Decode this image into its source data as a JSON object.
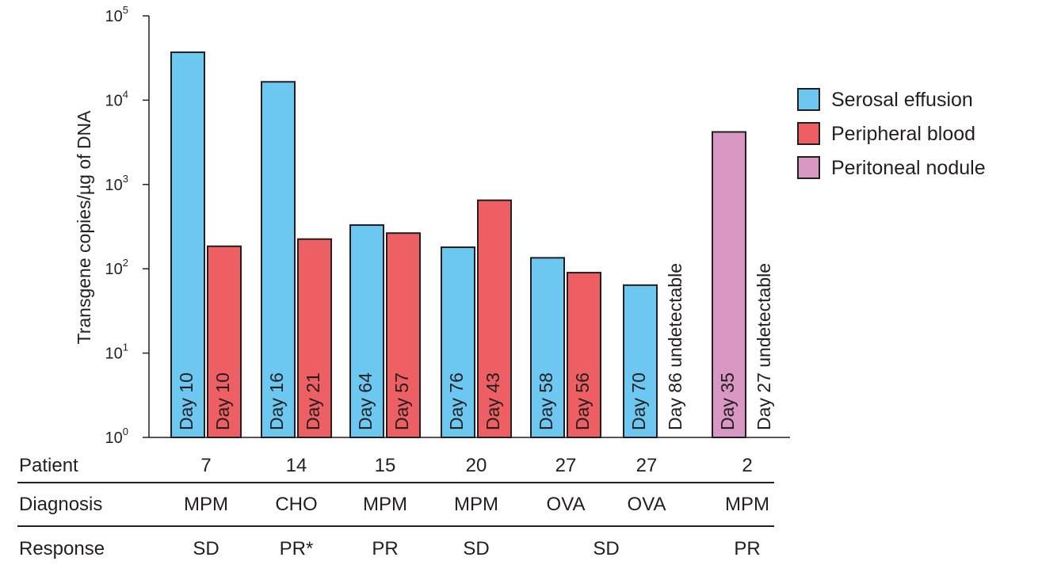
{
  "chart_data": {
    "type": "bar",
    "yscale": "log",
    "ylim": [
      1,
      100000
    ],
    "ylabel": "Transgene copies/µg of DNA",
    "ytick_base": "10",
    "ytick_exponents": [
      "0",
      "1",
      "2",
      "3",
      "4",
      "5"
    ],
    "legend": {
      "placement": "right",
      "entries": [
        {
          "label": "Serosal effusion",
          "color": "#6cc8f0"
        },
        {
          "label": "Peripheral blood",
          "color": "#ee5f63"
        },
        {
          "label": "Peritoneal nodule",
          "color": "#d896c2"
        }
      ]
    },
    "groups": [
      {
        "patient": "7",
        "diagnosis": "MPM",
        "bars": [
          {
            "series": "Serosal effusion",
            "value": 37000,
            "label": "Day 10"
          },
          {
            "series": "Peripheral blood",
            "value": 185,
            "label": "Day 10"
          }
        ]
      },
      {
        "patient": "14",
        "diagnosis": "CHO",
        "bars": [
          {
            "series": "Serosal effusion",
            "value": 16500,
            "label": "Day 16"
          },
          {
            "series": "Peripheral blood",
            "value": 225,
            "label": "Day 21"
          }
        ]
      },
      {
        "patient": "15",
        "diagnosis": "MPM",
        "bars": [
          {
            "series": "Serosal effusion",
            "value": 330,
            "label": "Day 64"
          },
          {
            "series": "Peripheral blood",
            "value": 265,
            "label": "Day 57"
          }
        ]
      },
      {
        "patient": "20",
        "diagnosis": "MPM",
        "bars": [
          {
            "series": "Serosal effusion",
            "value": 180,
            "label": "Day 76"
          },
          {
            "series": "Peripheral blood",
            "value": 650,
            "label": "Day 43"
          }
        ]
      },
      {
        "patient": "27",
        "diagnosis": "OVA",
        "bars": [
          {
            "series": "Serosal effusion",
            "value": 135,
            "label": "Day 58"
          },
          {
            "series": "Peripheral blood",
            "value": 90,
            "label": "Day 56"
          }
        ]
      },
      {
        "patient": "27",
        "diagnosis": "OVA",
        "bars": [
          {
            "series": "Serosal effusion",
            "value": 64,
            "label": "Day 70"
          },
          {
            "series": "Peripheral blood",
            "value": null,
            "label": "Day 86 undetectable"
          }
        ]
      },
      {
        "patient": "2",
        "diagnosis": "MPM",
        "bars": [
          {
            "series": "Peritoneal nodule",
            "value": 4200,
            "label": "Day 35"
          },
          {
            "series": "Peripheral blood",
            "value": null,
            "label": "Day 27 undetectable"
          }
        ]
      }
    ],
    "table": {
      "row_labels": {
        "patient": "Patient",
        "diagnosis": "Diagnosis",
        "response": "Response"
      },
      "responses": [
        {
          "text": "SD",
          "span": [
            0,
            0
          ]
        },
        {
          "text": "PR*",
          "span": [
            1,
            1
          ]
        },
        {
          "text": "PR",
          "span": [
            2,
            2
          ]
        },
        {
          "text": "SD",
          "span": [
            3,
            3
          ]
        },
        {
          "text": "SD",
          "span": [
            4,
            5
          ]
        },
        {
          "text": "PR",
          "span": [
            6,
            6
          ]
        }
      ]
    }
  }
}
